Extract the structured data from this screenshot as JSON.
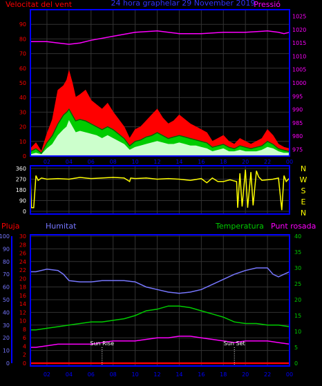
{
  "chart_data": [
    {
      "type": "area",
      "title": "24 hora graphelar   29 November 2019",
      "left_axis_label": "Velocitat del vent",
      "right_axis_label": "Pressió",
      "left_ticks": [
        "0",
        "10",
        "20",
        "30",
        "40",
        "50",
        "60",
        "70",
        "80",
        "90"
      ],
      "ylim": [
        0,
        100
      ],
      "right_ticks": [
        "975",
        "980",
        "985",
        "990",
        "995",
        "1000",
        "1005",
        "1010",
        "1015",
        "1020",
        "1025"
      ],
      "y2lim": [
        972.5,
        1027.5
      ],
      "x_ticks": [
        "02",
        "04",
        "06",
        "08",
        "10",
        "12",
        "14",
        "16",
        "18",
        "20",
        "22",
        "00"
      ],
      "xlim": [
        0.5,
        24.0
      ],
      "colors": {
        "gust": "#ff0000",
        "average": "#00aa00",
        "low": "#ccffcc",
        "pressure": "#ff00ff",
        "axis": "#0000ff",
        "grid": "#333333"
      },
      "series": [
        {
          "key": "gust",
          "x": [
            0.5,
            1,
            1.5,
            2,
            2.5,
            3,
            3.5,
            3.8,
            4,
            4.3,
            4.6,
            5,
            5.5,
            6,
            6.5,
            7,
            7.5,
            8,
            8.5,
            9,
            9.5,
            10,
            10.5,
            11,
            11.5,
            12,
            12.5,
            13,
            13.5,
            14,
            14.5,
            15,
            15.5,
            16,
            16.5,
            17,
            17.5,
            18,
            18.5,
            19,
            19.5,
            20,
            20.5,
            21,
            21.5,
            22,
            22.5,
            23,
            23.5,
            24
          ],
          "values": [
            5,
            9,
            3,
            15,
            25,
            45,
            48,
            52,
            58,
            50,
            40,
            42,
            45,
            38,
            35,
            32,
            36,
            30,
            25,
            20,
            12,
            18,
            20,
            24,
            28,
            32,
            26,
            22,
            24,
            28,
            25,
            22,
            20,
            18,
            16,
            10,
            12,
            14,
            10,
            8,
            12,
            10,
            8,
            10,
            12,
            18,
            14,
            8,
            6,
            5
          ]
        },
        {
          "key": "average",
          "x": [
            0.5,
            1,
            1.5,
            2,
            2.5,
            3,
            3.5,
            3.8,
            4,
            4.3,
            4.6,
            5,
            5.5,
            6,
            6.5,
            7,
            7.5,
            8,
            8.5,
            9,
            9.5,
            10,
            10.5,
            11,
            11.5,
            12,
            12.5,
            13,
            13.5,
            14,
            14.5,
            15,
            15.5,
            16,
            16.5,
            17,
            17.5,
            18,
            18.5,
            19,
            19.5,
            20,
            20.5,
            21,
            21.5,
            22,
            22.5,
            23,
            23.5,
            24
          ],
          "values": [
            3,
            5,
            2,
            9,
            14,
            22,
            28,
            30,
            32,
            28,
            24,
            25,
            24,
            22,
            20,
            18,
            20,
            18,
            15,
            12,
            7,
            10,
            11,
            13,
            14,
            16,
            14,
            12,
            13,
            14,
            13,
            12,
            11,
            10,
            9,
            6,
            7,
            8,
            6,
            5,
            7,
            6,
            5,
            6,
            7,
            10,
            8,
            5,
            4,
            3
          ]
        },
        {
          "key": "low",
          "x": [
            0.5,
            1,
            1.5,
            2,
            2.5,
            3,
            3.5,
            3.8,
            4,
            4.3,
            4.6,
            5,
            5.5,
            6,
            6.5,
            7,
            7.5,
            8,
            8.5,
            9,
            9.5,
            10,
            10.5,
            11,
            11.5,
            12,
            12.5,
            13,
            13.5,
            14,
            14.5,
            15,
            15.5,
            16,
            16.5,
            17,
            17.5,
            18,
            18.5,
            19,
            19.5,
            20,
            20.5,
            21,
            21.5,
            22,
            22.5,
            23,
            23.5,
            24
          ],
          "values": [
            1,
            2,
            1,
            5,
            8,
            14,
            18,
            20,
            24,
            20,
            16,
            17,
            16,
            15,
            14,
            12,
            14,
            12,
            10,
            8,
            4,
            6,
            7,
            8,
            9,
            10,
            9,
            8,
            8,
            9,
            8,
            7,
            7,
            6,
            5,
            3,
            4,
            5,
            3,
            3,
            4,
            3,
            3,
            3,
            4,
            6,
            5,
            3,
            2,
            2
          ]
        },
        {
          "key": "pressure",
          "x": [
            0.5,
            2,
            3,
            4,
            5,
            6,
            8,
            10,
            12,
            14,
            16,
            18,
            20,
            22,
            23,
            23.5,
            24
          ],
          "values": [
            1015.5,
            1015.5,
            1015,
            1014.5,
            1015,
            1016,
            1017.5,
            1019,
            1019.5,
            1018.5,
            1018.5,
            1019,
            1019,
            1019.5,
            1019,
            1018.5,
            1019
          ]
        }
      ]
    },
    {
      "type": "line",
      "left_ticks": [
        "0",
        "90",
        "180",
        "270",
        "360"
      ],
      "ylim": [
        0,
        360
      ],
      "right_labels": [
        "N",
        "W",
        "S",
        "E",
        "N"
      ],
      "x_ticks": [
        "02",
        "04",
        "06",
        "08",
        "10",
        "12",
        "14",
        "16",
        "18",
        "20",
        "22",
        "00"
      ],
      "xlim": [
        0.5,
        24.0
      ],
      "series": [
        {
          "key": "direction",
          "color": "#ffff00",
          "x": [
            0.5,
            0.6,
            0.8,
            1,
            1.2,
            1.5,
            2,
            3,
            4,
            5,
            6,
            7,
            8,
            9,
            9.5,
            9.6,
            10,
            11,
            12,
            13,
            14,
            15,
            16,
            16.5,
            17,
            17.5,
            18,
            18.6,
            19.2,
            19.3,
            19.5,
            19.7,
            20,
            20.2,
            20.5,
            20.7,
            21,
            21.2,
            21.5,
            22,
            22.5,
            23,
            23.3,
            23.5,
            23.7,
            24
          ],
          "values": [
            290,
            30,
            30,
            300,
            260,
            280,
            270,
            275,
            270,
            285,
            275,
            280,
            285,
            280,
            250,
            280,
            275,
            280,
            270,
            275,
            270,
            260,
            275,
            240,
            280,
            250,
            250,
            265,
            250,
            30,
            320,
            40,
            350,
            30,
            330,
            50,
            340,
            290,
            260,
            265,
            270,
            280,
            10,
            300,
            250,
            280
          ]
        }
      ]
    },
    {
      "type": "line",
      "left_axis_label": "Pluja",
      "humidity_label": "Humitat",
      "temperature_label": "Temperatura",
      "dewpoint_label": "Punt rosada",
      "humidity_ticks": [
        "0",
        "10",
        "20",
        "30",
        "40",
        "50",
        "60",
        "70",
        "80",
        "90",
        "100"
      ],
      "rain_ticks": [
        "0",
        "2",
        "4",
        "6",
        "8",
        "10",
        "12",
        "14",
        "16",
        "18",
        "20",
        "22",
        "24",
        "26",
        "28",
        "30"
      ],
      "temp_ticks": [
        "0",
        "5",
        "10",
        "15",
        "20",
        "25",
        "30",
        "35",
        "40"
      ],
      "x_ticks": [
        "02",
        "04",
        "06",
        "08",
        "10",
        "12",
        "14",
        "16",
        "18",
        "20",
        "22",
        "00"
      ],
      "xlim": [
        0.5,
        24.0
      ],
      "annotations": [
        {
          "text": "Sun Rise",
          "x": 7.0
        },
        {
          "text": "Sun Set",
          "x": 19.0
        }
      ],
      "series": [
        {
          "key": "humidity",
          "color": "#7777ff",
          "axis_max": 100,
          "x": [
            0.5,
            1,
            2,
            3,
            3.5,
            4,
            5,
            6,
            7,
            8,
            9,
            10,
            11,
            12,
            13,
            14,
            15,
            16,
            17,
            18,
            19,
            20,
            21,
            22,
            22.5,
            23,
            23.5,
            24
          ],
          "values": [
            72,
            72,
            74,
            73,
            70,
            65,
            64,
            64,
            65,
            65,
            65,
            64,
            60,
            58,
            56,
            55,
            56,
            58,
            62,
            66,
            70,
            73,
            75,
            75,
            70,
            68,
            70,
            72
          ]
        },
        {
          "key": "temperature",
          "color": "#00cc00",
          "axis_max": 40,
          "x": [
            0.5,
            1,
            2,
            3,
            4,
            5,
            6,
            7,
            8,
            9,
            10,
            11,
            12,
            13,
            14,
            15,
            16,
            17,
            18,
            19,
            20,
            21,
            22,
            23,
            24
          ],
          "values": [
            10.5,
            10.5,
            11,
            11.5,
            12,
            12.5,
            13,
            13,
            13.5,
            14,
            15,
            16.5,
            17,
            18,
            18,
            17.5,
            16.5,
            15.5,
            14.5,
            13,
            12.5,
            12.5,
            12,
            12,
            11.5
          ]
        },
        {
          "key": "dewpoint",
          "color": "#ff00ff",
          "axis_max": 40,
          "x": [
            0.5,
            1,
            2,
            3,
            4,
            5,
            6,
            7,
            8,
            9,
            10,
            11,
            12,
            13,
            14,
            15,
            16,
            17,
            18,
            19,
            20,
            21,
            22,
            23,
            24
          ],
          "values": [
            5,
            5,
            5.5,
            6,
            6,
            6,
            6,
            6.5,
            7,
            7,
            7,
            7.5,
            8,
            8,
            8.5,
            8.5,
            8,
            7.5,
            7,
            6.5,
            7,
            7,
            7,
            6.5,
            6
          ]
        },
        {
          "key": "rain",
          "color": "#ff0000",
          "axis_max": 30,
          "x": [
            0.5,
            24
          ],
          "values": [
            0,
            0
          ]
        }
      ]
    }
  ]
}
